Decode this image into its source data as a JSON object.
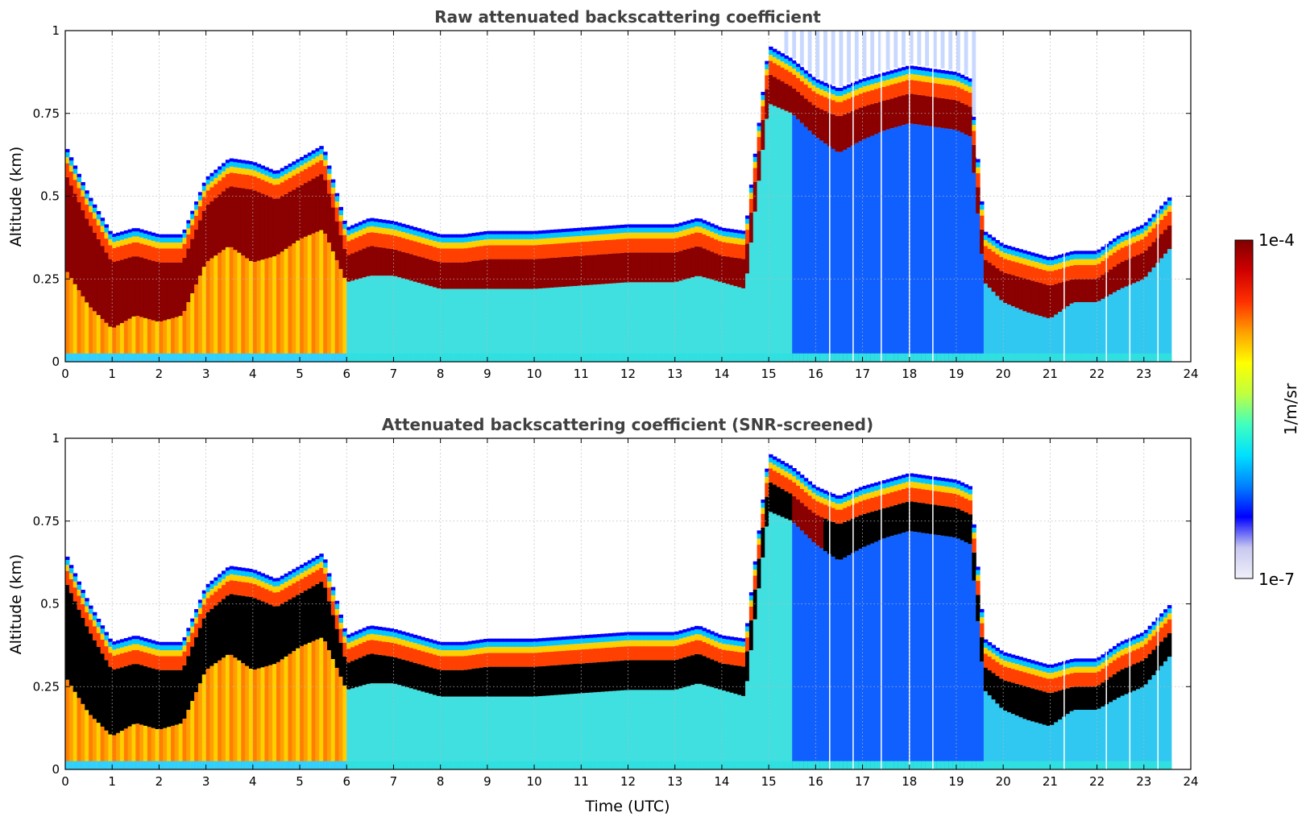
{
  "chart_data": [
    {
      "type": "heatmap",
      "title": "Raw attenuated backscattering coefficient",
      "xlabel": "",
      "ylabel": "Altitude (km)",
      "xlim": [
        0,
        24
      ],
      "ylim": [
        0,
        1
      ],
      "xticks": [
        "0",
        "1",
        "2",
        "3",
        "4",
        "5",
        "6",
        "7",
        "8",
        "9",
        "10",
        "11",
        "12",
        "13",
        "14",
        "15",
        "16",
        "17",
        "18",
        "19",
        "20",
        "21",
        "22",
        "23",
        "24"
      ],
      "yticks": [
        "0",
        "0.25",
        "0.5",
        "0.75",
        "1"
      ],
      "grid": true,
      "data_end_hour": 23.6,
      "layer": {
        "x": [
          0,
          0.5,
          1,
          1.5,
          2,
          2.5,
          3,
          3.5,
          4,
          4.5,
          5,
          5.5,
          6,
          6.5,
          7,
          7.5,
          8,
          8.5,
          9,
          10,
          11,
          12,
          13,
          13.5,
          14,
          14.5,
          15,
          15.5,
          16,
          16.5,
          17,
          17.5,
          18,
          18.5,
          19,
          19.3,
          19.6,
          20,
          20.5,
          21,
          21.5,
          22,
          22.5,
          23,
          23.6
        ],
        "top_km": [
          0.6,
          0.45,
          0.33,
          0.35,
          0.33,
          0.33,
          0.5,
          0.56,
          0.55,
          0.52,
          0.56,
          0.6,
          0.35,
          0.38,
          0.37,
          0.35,
          0.33,
          0.33,
          0.34,
          0.34,
          0.35,
          0.36,
          0.36,
          0.38,
          0.35,
          0.34,
          0.9,
          0.86,
          0.8,
          0.77,
          0.8,
          0.82,
          0.84,
          0.83,
          0.82,
          0.8,
          0.34,
          0.3,
          0.28,
          0.26,
          0.28,
          0.28,
          0.33,
          0.36,
          0.45
        ],
        "bottom_km": [
          0.28,
          0.17,
          0.1,
          0.14,
          0.12,
          0.14,
          0.3,
          0.35,
          0.3,
          0.32,
          0.37,
          0.4,
          0.24,
          0.26,
          0.26,
          0.24,
          0.22,
          0.22,
          0.22,
          0.22,
          0.23,
          0.24,
          0.24,
          0.26,
          0.24,
          0.22,
          0.78,
          0.75,
          0.68,
          0.63,
          0.67,
          0.7,
          0.72,
          0.71,
          0.7,
          0.68,
          0.24,
          0.18,
          0.15,
          0.13,
          0.18,
          0.18,
          0.22,
          0.25,
          0.35
        ]
      },
      "white_gap_hours": [
        16.3,
        16.8,
        17.4,
        18.0,
        18.5,
        21.3,
        22.2,
        22.7,
        23.3
      ]
    },
    {
      "type": "heatmap",
      "title": "Attenuated backscattering coefficient (SNR-screened)",
      "xlabel": "Time (UTC)",
      "ylabel": "Altitude (km)",
      "xlim": [
        0,
        24
      ],
      "ylim": [
        0,
        1
      ],
      "xticks": [
        "0",
        "1",
        "2",
        "3",
        "4",
        "5",
        "6",
        "7",
        "8",
        "9",
        "10",
        "11",
        "12",
        "13",
        "14",
        "15",
        "16",
        "17",
        "18",
        "19",
        "20",
        "21",
        "22",
        "23",
        "24"
      ],
      "yticks": [
        "0",
        "0.25",
        "0.5",
        "0.75",
        "1"
      ],
      "grid": true,
      "data_end_hour": 23.6,
      "saturated_color": "#000000",
      "layer": {
        "x": [
          0,
          0.5,
          1,
          1.5,
          2,
          2.5,
          3,
          3.5,
          4,
          4.5,
          5,
          5.5,
          6,
          6.5,
          7,
          7.5,
          8,
          8.5,
          9,
          10,
          11,
          12,
          13,
          13.5,
          14,
          14.5,
          15,
          15.5,
          16,
          16.5,
          17,
          17.5,
          18,
          18.5,
          19,
          19.3,
          19.6,
          20,
          20.5,
          21,
          21.5,
          22,
          22.5,
          23,
          23.6
        ],
        "top_km": [
          0.6,
          0.45,
          0.33,
          0.35,
          0.33,
          0.33,
          0.5,
          0.56,
          0.55,
          0.52,
          0.56,
          0.6,
          0.35,
          0.38,
          0.37,
          0.35,
          0.33,
          0.33,
          0.34,
          0.34,
          0.35,
          0.36,
          0.36,
          0.38,
          0.35,
          0.34,
          0.9,
          0.86,
          0.8,
          0.77,
          0.8,
          0.82,
          0.84,
          0.83,
          0.82,
          0.8,
          0.34,
          0.3,
          0.28,
          0.26,
          0.28,
          0.28,
          0.33,
          0.36,
          0.45
        ],
        "bottom_km": [
          0.28,
          0.17,
          0.1,
          0.14,
          0.12,
          0.14,
          0.3,
          0.35,
          0.3,
          0.32,
          0.37,
          0.4,
          0.24,
          0.26,
          0.26,
          0.24,
          0.22,
          0.22,
          0.22,
          0.22,
          0.23,
          0.24,
          0.24,
          0.26,
          0.24,
          0.22,
          0.78,
          0.75,
          0.68,
          0.63,
          0.67,
          0.7,
          0.72,
          0.71,
          0.7,
          0.68,
          0.24,
          0.18,
          0.15,
          0.13,
          0.18,
          0.18,
          0.22,
          0.25,
          0.35
        ]
      },
      "white_gap_hours": [
        16.3,
        16.8,
        17.4,
        18.0,
        18.5,
        21.3,
        22.2,
        22.7,
        23.3
      ]
    }
  ],
  "colorbar": {
    "label": "1/m/sr",
    "max_label": "1e-4",
    "min_label": "1e-7",
    "scale": "log",
    "range": [
      1e-07,
      0.0001
    ],
    "colors": [
      "#f0f0fa",
      "#c8c8f0",
      "#0000ff",
      "#0080ff",
      "#00e0ff",
      "#40ffc0",
      "#c0ff40",
      "#ffff00",
      "#ffa000",
      "#ff3000",
      "#d00000",
      "#800000"
    ]
  }
}
